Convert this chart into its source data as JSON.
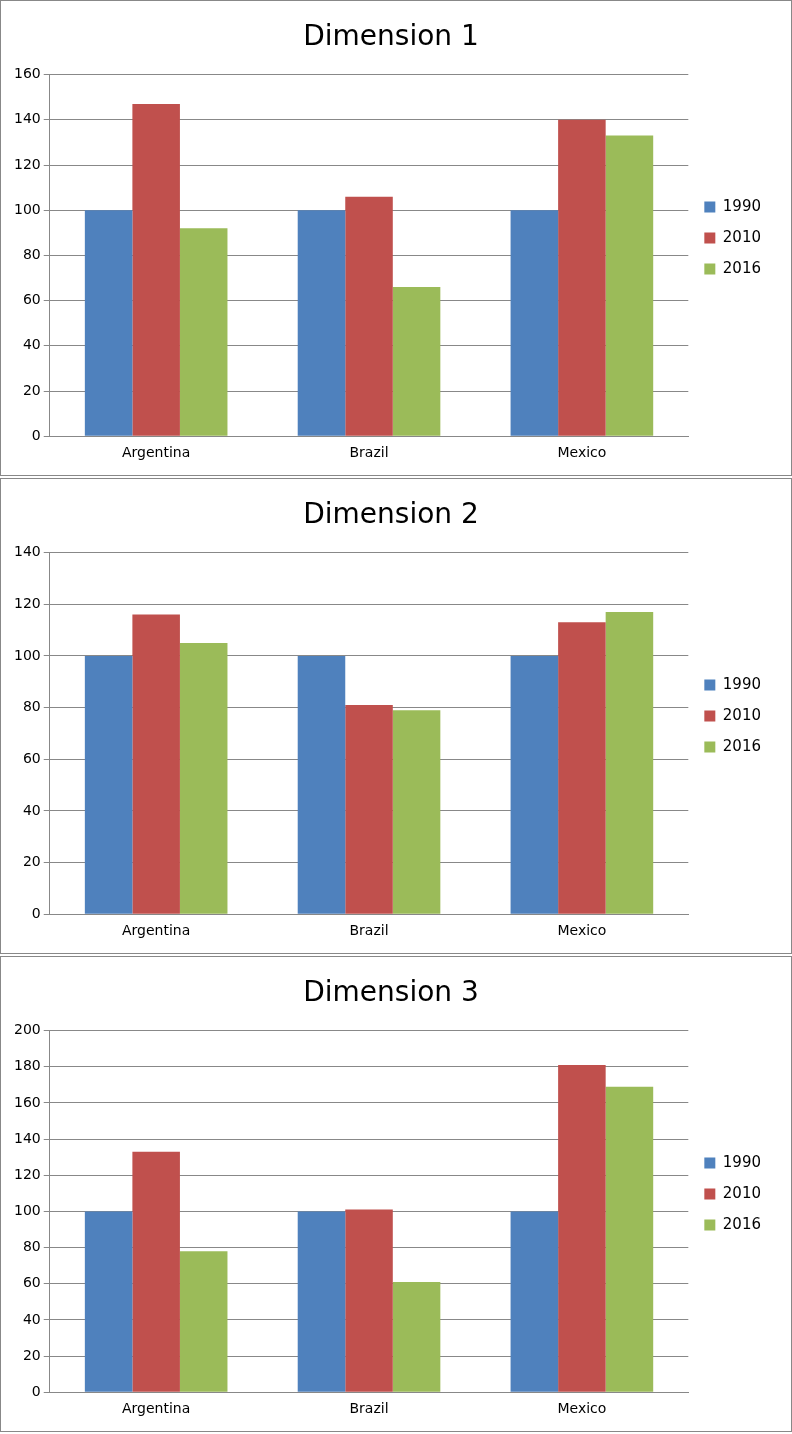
{
  "chart_data": [
    {
      "type": "bar",
      "title": "Dimension 1",
      "categories": [
        "Argentina",
        "Brazil",
        "Mexico"
      ],
      "series": [
        {
          "name": "1990",
          "color": "#4f81bd",
          "values": [
            100,
            100,
            100
          ]
        },
        {
          "name": "2010",
          "color": "#c0504d",
          "values": [
            147,
            106,
            140
          ]
        },
        {
          "name": "2016",
          "color": "#9bbb59",
          "values": [
            92,
            66,
            133
          ]
        }
      ],
      "ylim": [
        0,
        160
      ],
      "yticks": [
        0,
        20,
        40,
        60,
        80,
        100,
        120,
        140,
        160
      ],
      "grid": "y",
      "legend": "right"
    },
    {
      "type": "bar",
      "title": "Dimension 2",
      "categories": [
        "Argentina",
        "Brazil",
        "Mexico"
      ],
      "series": [
        {
          "name": "1990",
          "color": "#4f81bd",
          "values": [
            100,
            100,
            100
          ]
        },
        {
          "name": "2010",
          "color": "#c0504d",
          "values": [
            116,
            81,
            113
          ]
        },
        {
          "name": "2016",
          "color": "#9bbb59",
          "values": [
            105,
            79,
            117
          ]
        }
      ],
      "ylim": [
        0,
        140
      ],
      "yticks": [
        0,
        20,
        40,
        60,
        80,
        100,
        120,
        140
      ],
      "grid": "y",
      "legend": "right"
    },
    {
      "type": "bar",
      "title": "Dimension 3",
      "categories": [
        "Argentina",
        "Brazil",
        "Mexico"
      ],
      "series": [
        {
          "name": "1990",
          "color": "#4f81bd",
          "values": [
            100,
            100,
            100
          ]
        },
        {
          "name": "2010",
          "color": "#c0504d",
          "values": [
            133,
            101,
            181
          ]
        },
        {
          "name": "2016",
          "color": "#9bbb59",
          "values": [
            78,
            61,
            169
          ]
        }
      ],
      "ylim": [
        0,
        200
      ],
      "yticks": [
        0,
        20,
        40,
        60,
        80,
        100,
        120,
        140,
        160,
        180,
        200
      ],
      "grid": "y",
      "legend": "right"
    }
  ]
}
